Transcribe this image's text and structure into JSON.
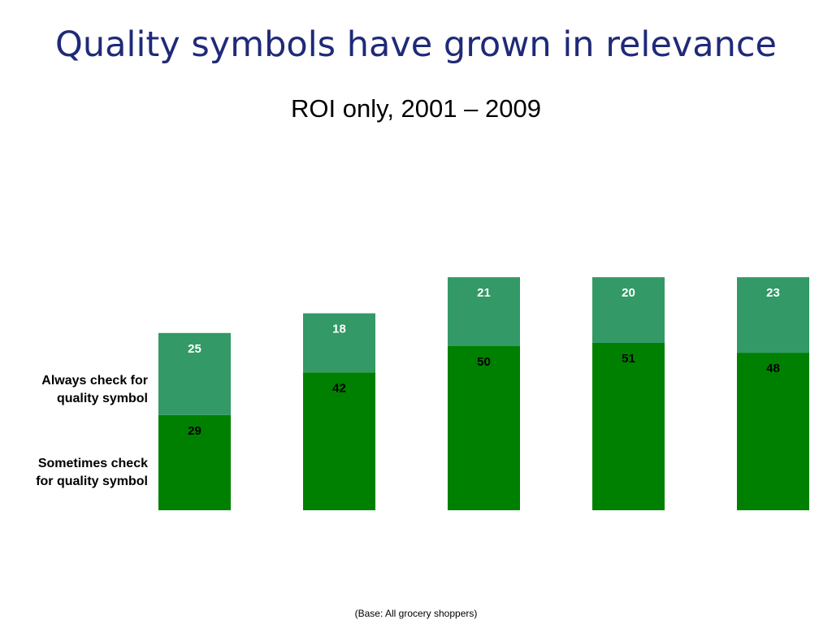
{
  "slide": {
    "title": "Quality symbols have grown in relevance",
    "subtitle": "ROI only, 2001 – 2009",
    "footnote": "(Base:  All grocery shoppers)"
  },
  "chart_data": {
    "type": "bar",
    "stacked": true,
    "categories": [
      "",
      "",
      "",
      "",
      ""
    ],
    "series": [
      {
        "name": "Sometimes check for quality symbol",
        "values": [
          29,
          42,
          50,
          51,
          48
        ],
        "color": "#008000"
      },
      {
        "name": "Always check for quality symbol",
        "values": [
          25,
          18,
          21,
          20,
          23
        ],
        "color": "#339966"
      }
    ],
    "legend": {
      "top": "Always check for quality symbol",
      "bottom": "Sometimes check for quality symbol",
      "top_lines": [
        "Always check for",
        "quality symbol"
      ],
      "bottom_lines": [
        "Sometimes check",
        "for quality symbol"
      ],
      "placement": "left"
    },
    "data_labels": true,
    "grid": false,
    "ylim": [
      0,
      71
    ]
  }
}
